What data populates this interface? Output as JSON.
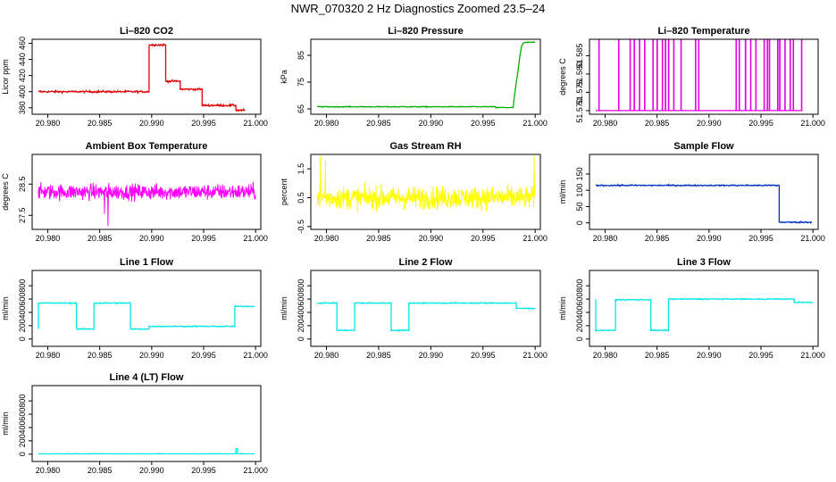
{
  "figure_title": "NWR_070320  2 Hz Diagnostics Zoomed 23.5–24",
  "chart_data": [
    {
      "type": "line",
      "title": "Li–820 CO2",
      "ylabel": "Licor ppm",
      "color": "#e00000",
      "xlim": [
        20.9785,
        21.0005
      ],
      "x_ticks": [
        "20.980",
        "20.985",
        "20.990",
        "20.995",
        "21.000"
      ],
      "x_tick_values": [
        20.98,
        20.985,
        20.99,
        20.995,
        21.0
      ],
      "ylim": [
        372,
        465
      ],
      "y_ticks": [
        "380",
        "400",
        "420",
        "440",
        "460"
      ],
      "y_tick_values": [
        380,
        400,
        420,
        440,
        460
      ],
      "style": "step",
      "noise": 1.2,
      "x": [
        20.9791,
        20.98975,
        20.98975,
        20.99135,
        20.99135,
        20.99275,
        20.99275,
        20.99485,
        20.99485,
        20.9981,
        20.9981,
        20.999
      ],
      "y": [
        400,
        400,
        458,
        458,
        413,
        413,
        403,
        403,
        383,
        383,
        377,
        377
      ]
    },
    {
      "type": "line",
      "title": "Li–820 Pressure",
      "ylabel": "kPa",
      "color": "#00b000",
      "xlim": [
        20.9785,
        21.0005
      ],
      "x_ticks": [
        "20.980",
        "20.985",
        "20.990",
        "20.995",
        "21.000"
      ],
      "x_tick_values": [
        20.98,
        20.985,
        20.99,
        20.995,
        21.0
      ],
      "ylim": [
        63,
        91
      ],
      "y_ticks": [
        "65",
        "75",
        "85"
      ],
      "y_tick_values": [
        65,
        75,
        85
      ],
      "style": "step",
      "noise": 0.15,
      "x": [
        20.9791,
        20.9962,
        20.9962,
        20.9979,
        20.99795,
        20.9981,
        20.99835,
        20.99855,
        20.9987,
        20.9989,
        20.99905,
        20.99935,
        21.0
      ],
      "y": [
        65.8,
        65.8,
        65.5,
        65.5,
        67.5,
        72.5,
        79,
        85,
        88.5,
        89.6,
        89.8,
        89.9,
        90.0
      ]
    },
    {
      "type": "line",
      "title": "Li–820 Temperature",
      "ylabel": "degrees C",
      "color": "#e000e0",
      "xlim": [
        20.9785,
        21.0005
      ],
      "x_ticks": [
        "20.980",
        "20.985",
        "20.990",
        "20.995",
        "21.000"
      ],
      "x_tick_values": [
        20.98,
        20.985,
        20.99,
        20.995,
        21.0
      ],
      "ylim": [
        51.569,
        51.5895
      ],
      "y_ticks": [
        "51.570",
        "51.575",
        "51.580",
        "51.585"
      ],
      "y_tick_values": [
        51.57,
        51.575,
        51.58,
        51.585
      ],
      "style": "spikes",
      "baseline": 51.57,
      "spike_top": 51.5892,
      "x_range": [
        20.9791,
        20.999
      ],
      "spike_x": [
        20.9794,
        20.9813,
        20.9824,
        20.9828,
        20.9833,
        20.9838,
        20.9846,
        20.985,
        20.9855,
        20.9858,
        20.9861,
        20.9866,
        20.9873,
        20.9887,
        20.989,
        20.9926,
        20.9929,
        20.9935,
        20.994,
        20.9945,
        20.9953,
        20.9956,
        20.9958,
        20.9966,
        20.9968,
        20.9973,
        20.9978,
        20.9981,
        20.9989
      ]
    },
    {
      "type": "line",
      "title": "Ambient Box Temperature",
      "ylabel": "degrees C",
      "color": "#ff00ff",
      "xlim": [
        20.9785,
        21.0005
      ],
      "x_ticks": [
        "20.980",
        "20.985",
        "20.990",
        "20.995",
        "21.000"
      ],
      "x_tick_values": [
        20.98,
        20.985,
        20.99,
        20.995,
        21.0
      ],
      "ylim": [
        27.05,
        29.45
      ],
      "y_ticks": [
        "27.5",
        "28.5"
      ],
      "y_tick_values": [
        27.5,
        28.5
      ],
      "style": "noise",
      "x_range": [
        20.9791,
        21.0
      ],
      "mean": 28.25,
      "amplitude": 0.55,
      "dips": [
        [
          20.9858,
          27.15
        ],
        [
          20.98545,
          27.55
        ]
      ]
    },
    {
      "type": "line",
      "title": "Gas Stream RH",
      "ylabel": "percent",
      "color": "#ffff00",
      "xlim": [
        20.9785,
        21.0005
      ],
      "x_ticks": [
        "20.980",
        "20.985",
        "20.990",
        "20.995",
        "21.000"
      ],
      "x_tick_values": [
        20.98,
        20.985,
        20.99,
        20.995,
        21.0
      ],
      "ylim": [
        -0.6,
        2.0
      ],
      "y_ticks": [
        "-0.5",
        "0.5",
        "1.5"
      ],
      "y_tick_values": [
        -0.5,
        0.5,
        1.5
      ],
      "style": "noise",
      "x_range": [
        20.9791,
        21.0
      ],
      "mean": 0.5,
      "amplitude": 0.85,
      "dips": [
        [
          20.9794,
          1.95
        ],
        [
          20.9999,
          1.95
        ],
        [
          20.9799,
          1.8
        ]
      ]
    },
    {
      "type": "line",
      "title": "Sample Flow",
      "ylabel": "ml/min",
      "color": "#0030c0",
      "xlim": [
        20.9785,
        21.0005
      ],
      "x_ticks": [
        "20.980",
        "20.985",
        "20.990",
        "20.995",
        "21.000"
      ],
      "x_tick_values": [
        20.98,
        20.985,
        20.99,
        20.995,
        21.0
      ],
      "ylim": [
        -20,
        210
      ],
      "y_ticks": [
        "0",
        "50",
        "100",
        "150"
      ],
      "y_tick_values": [
        0,
        50,
        100,
        150
      ],
      "style": "step",
      "noise": 2,
      "x": [
        20.9791,
        20.99675,
        20.99675,
        20.9999
      ],
      "y": [
        115,
        115,
        2,
        2
      ]
    },
    {
      "type": "line",
      "title": "Line 1 Flow",
      "ylabel": "ml/min",
      "color": "#00e8e8",
      "xlim": [
        20.9785,
        21.0005
      ],
      "x_ticks": [
        "20.980",
        "20.985",
        "20.990",
        "20.995",
        "21.000"
      ],
      "x_tick_values": [
        20.98,
        20.985,
        20.99,
        20.995,
        21.0
      ],
      "ylim": [
        -110,
        1030
      ],
      "y_ticks": [
        "0",
        "200",
        "400",
        "600",
        "800"
      ],
      "y_tick_values": [
        0,
        200,
        400,
        600,
        800
      ],
      "style": "step",
      "noise": 8,
      "x": [
        20.9791,
        20.9791,
        20.98275,
        20.98275,
        20.98445,
        20.98445,
        20.98795,
        20.98795,
        20.98975,
        20.98975,
        20.998,
        20.998,
        20.9999
      ],
      "y": [
        150,
        540,
        540,
        150,
        150,
        540,
        540,
        150,
        150,
        190,
        190,
        490,
        490
      ]
    },
    {
      "type": "line",
      "title": "Line 2 Flow",
      "ylabel": "ml/min",
      "color": "#00e8e8",
      "xlim": [
        20.9785,
        21.0005
      ],
      "x_ticks": [
        "20.980",
        "20.985",
        "20.990",
        "20.995",
        "21.000"
      ],
      "x_tick_values": [
        20.98,
        20.985,
        20.99,
        20.995,
        21.0
      ],
      "ylim": [
        -110,
        1030
      ],
      "y_ticks": [
        "0",
        "200",
        "400",
        "600",
        "800"
      ],
      "y_tick_values": [
        0,
        200,
        400,
        600,
        800
      ],
      "style": "step",
      "noise": 8,
      "x": [
        20.9791,
        20.981,
        20.981,
        20.9827,
        20.9827,
        20.9862,
        20.9862,
        20.9879,
        20.9879,
        20.9982,
        20.9982,
        21.0
      ],
      "y": [
        540,
        540,
        130,
        130,
        540,
        540,
        130,
        130,
        540,
        540,
        460,
        460
      ]
    },
    {
      "type": "line",
      "title": "Line 3 Flow",
      "ylabel": "ml/min",
      "color": "#00e8e8",
      "xlim": [
        20.9785,
        21.0005
      ],
      "x_ticks": [
        "20.980",
        "20.985",
        "20.990",
        "20.995",
        "21.000"
      ],
      "x_tick_values": [
        20.98,
        20.985,
        20.99,
        20.995,
        21.0
      ],
      "ylim": [
        -110,
        1030
      ],
      "y_ticks": [
        "0",
        "200",
        "400",
        "600",
        "800"
      ],
      "y_tick_values": [
        0,
        200,
        400,
        600,
        800
      ],
      "style": "step",
      "noise": 8,
      "x": [
        20.9791,
        20.9791,
        20.981,
        20.981,
        20.9844,
        20.9844,
        20.9861,
        20.9861,
        20.9982,
        20.9982,
        21.0
      ],
      "y": [
        600,
        130,
        130,
        590,
        590,
        130,
        130,
        600,
        600,
        550,
        550
      ]
    },
    {
      "type": "line",
      "title": "Line 4 (LT) Flow",
      "ylabel": "ml/min",
      "color": "#00e8e8",
      "xlim": [
        20.9785,
        21.0005
      ],
      "x_ticks": [
        "20.980",
        "20.985",
        "20.990",
        "20.995",
        "21.000"
      ],
      "x_tick_values": [
        20.98,
        20.985,
        20.99,
        20.995,
        21.0
      ],
      "ylim": [
        -110,
        1030
      ],
      "y_ticks": [
        "0",
        "200",
        "400",
        "600",
        "800"
      ],
      "y_tick_values": [
        0,
        200,
        400,
        600,
        800
      ],
      "style": "step",
      "noise": 3,
      "x": [
        20.9791,
        20.9981,
        20.9981,
        20.99825,
        20.99825,
        20.9999
      ],
      "y": [
        5,
        5,
        80,
        80,
        5,
        5
      ]
    }
  ]
}
